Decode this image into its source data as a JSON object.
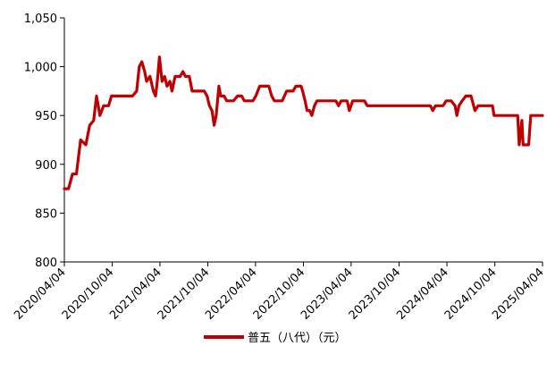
{
  "chart_data": {
    "type": "line",
    "title": "",
    "xlabel": "",
    "ylabel": "",
    "ylim": [
      800,
      1050
    ],
    "yticks": [
      "800",
      "850",
      "900",
      "950",
      "1,000",
      "1,050"
    ],
    "ytick_values": [
      800,
      850,
      900,
      950,
      1000,
      1050
    ],
    "xlim": [
      "2020-04-04",
      "2025-04-04"
    ],
    "xticks": [
      "2020/04/04",
      "2020/10/04",
      "2021/04/04",
      "2021/10/04",
      "2022/04/04",
      "2022/10/04",
      "2023/04/04",
      "2023/10/04",
      "2024/04/04",
      "2024/10/04",
      "2025/04/04"
    ],
    "xtick_dates": [
      "2020-04-04",
      "2020-10-04",
      "2021-04-04",
      "2021-10-04",
      "2022-04-04",
      "2022-10-04",
      "2023-04-04",
      "2023-10-04",
      "2024-04-04",
      "2024-10-04",
      "2025-04-04"
    ],
    "grid": false,
    "legend_position": "bottom",
    "color": "#c00000",
    "series": [
      {
        "name": "普五（八代）（元）",
        "points": [
          [
            "2020-04-04",
            875
          ],
          [
            "2020-04-20",
            875
          ],
          [
            "2020-05-05",
            890
          ],
          [
            "2020-05-20",
            890
          ],
          [
            "2020-06-05",
            925
          ],
          [
            "2020-06-25",
            920
          ],
          [
            "2020-07-10",
            940
          ],
          [
            "2020-07-25",
            945
          ],
          [
            "2020-08-05",
            970
          ],
          [
            "2020-08-18",
            950
          ],
          [
            "2020-09-01",
            960
          ],
          [
            "2020-09-20",
            960
          ],
          [
            "2020-10-01",
            970
          ],
          [
            "2020-12-20",
            970
          ],
          [
            "2021-01-05",
            975
          ],
          [
            "2021-01-15",
            1000
          ],
          [
            "2021-01-25",
            1005
          ],
          [
            "2021-02-05",
            995
          ],
          [
            "2021-02-12",
            985
          ],
          [
            "2021-02-25",
            990
          ],
          [
            "2021-03-10",
            975
          ],
          [
            "2021-03-18",
            970
          ],
          [
            "2021-03-25",
            985
          ],
          [
            "2021-04-02",
            1010
          ],
          [
            "2021-04-12",
            985
          ],
          [
            "2021-04-22",
            990
          ],
          [
            "2021-05-01",
            980
          ],
          [
            "2021-05-12",
            985
          ],
          [
            "2021-05-20",
            975
          ],
          [
            "2021-06-01",
            990
          ],
          [
            "2021-06-20",
            990
          ],
          [
            "2021-07-01",
            995
          ],
          [
            "2021-07-10",
            990
          ],
          [
            "2021-07-25",
            990
          ],
          [
            "2021-08-05",
            975
          ],
          [
            "2021-09-20",
            975
          ],
          [
            "2021-10-01",
            970
          ],
          [
            "2021-10-10",
            960
          ],
          [
            "2021-10-20",
            955
          ],
          [
            "2021-10-28",
            940
          ],
          [
            "2021-11-05",
            950
          ],
          [
            "2021-11-15",
            980
          ],
          [
            "2021-11-22",
            970
          ],
          [
            "2021-12-05",
            970
          ],
          [
            "2021-12-15",
            965
          ],
          [
            "2022-01-10",
            965
          ],
          [
            "2022-01-25",
            970
          ],
          [
            "2022-02-10",
            970
          ],
          [
            "2022-02-20",
            965
          ],
          [
            "2022-03-25",
            965
          ],
          [
            "2022-04-05",
            970
          ],
          [
            "2022-04-20",
            980
          ],
          [
            "2022-05-25",
            980
          ],
          [
            "2022-06-05",
            970
          ],
          [
            "2022-06-15",
            965
          ],
          [
            "2022-07-15",
            965
          ],
          [
            "2022-08-01",
            975
          ],
          [
            "2022-08-25",
            975
          ],
          [
            "2022-09-05",
            980
          ],
          [
            "2022-09-25",
            980
          ],
          [
            "2022-10-01",
            975
          ],
          [
            "2022-10-10",
            965
          ],
          [
            "2022-10-18",
            955
          ],
          [
            "2022-10-28",
            955
          ],
          [
            "2022-11-05",
            950
          ],
          [
            "2022-11-15",
            960
          ],
          [
            "2022-11-25",
            965
          ],
          [
            "2023-02-05",
            965
          ],
          [
            "2023-02-15",
            960
          ],
          [
            "2023-02-25",
            965
          ],
          [
            "2023-03-20",
            965
          ],
          [
            "2023-03-28",
            955
          ],
          [
            "2023-04-10",
            965
          ],
          [
            "2023-05-25",
            965
          ],
          [
            "2023-06-05",
            960
          ],
          [
            "2024-02-01",
            960
          ],
          [
            "2024-02-10",
            955
          ],
          [
            "2024-02-20",
            960
          ],
          [
            "2024-03-20",
            960
          ],
          [
            "2024-04-01",
            965
          ],
          [
            "2024-04-20",
            965
          ],
          [
            "2024-05-05",
            960
          ],
          [
            "2024-05-12",
            950
          ],
          [
            "2024-05-20",
            960
          ],
          [
            "2024-06-01",
            965
          ],
          [
            "2024-06-15",
            970
          ],
          [
            "2024-07-05",
            970
          ],
          [
            "2024-07-20",
            955
          ],
          [
            "2024-08-01",
            960
          ],
          [
            "2024-09-25",
            960
          ],
          [
            "2024-10-01",
            950
          ],
          [
            "2024-12-30",
            950
          ],
          [
            "2025-01-05",
            920
          ],
          [
            "2025-01-15",
            945
          ],
          [
            "2025-01-20",
            920
          ],
          [
            "2025-02-10",
            920
          ],
          [
            "2025-02-18",
            950
          ],
          [
            "2025-04-04",
            950
          ]
        ]
      }
    ]
  }
}
